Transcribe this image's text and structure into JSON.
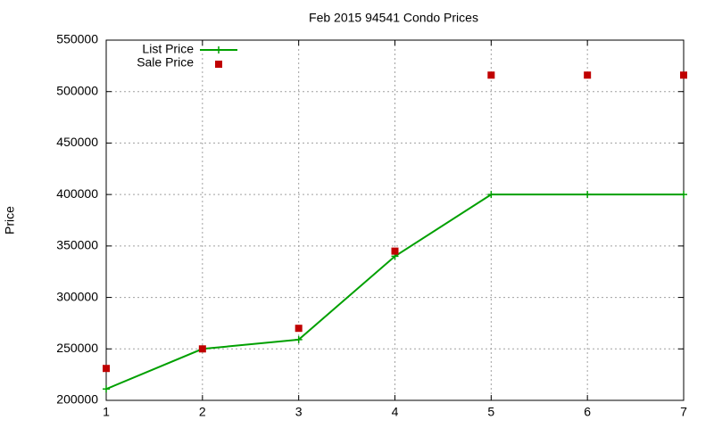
{
  "chart_data": {
    "type": "line",
    "title": "Feb 2015 94541 Condo Prices",
    "y_label": "Price",
    "x": [
      1,
      2,
      3,
      4,
      5,
      6,
      7
    ],
    "series": [
      {
        "name": "List Price",
        "color": "#00a000",
        "style": "lines+markers",
        "values": [
          211000,
          250000,
          259000,
          340000,
          400000,
          400000,
          400000
        ]
      },
      {
        "name": "Sale Price",
        "color": "#c00000",
        "style": "markers",
        "values": [
          231000,
          250000,
          270000,
          345000,
          516000,
          516000,
          516000
        ]
      }
    ],
    "xlim": [
      1,
      7
    ],
    "xticks": [
      1,
      2,
      3,
      4,
      5,
      6,
      7
    ],
    "ylim": [
      200000,
      550000
    ],
    "yticks": [
      200000,
      250000,
      300000,
      350000,
      400000,
      450000,
      500000,
      550000
    ],
    "grid": true,
    "legend": "top-left"
  }
}
